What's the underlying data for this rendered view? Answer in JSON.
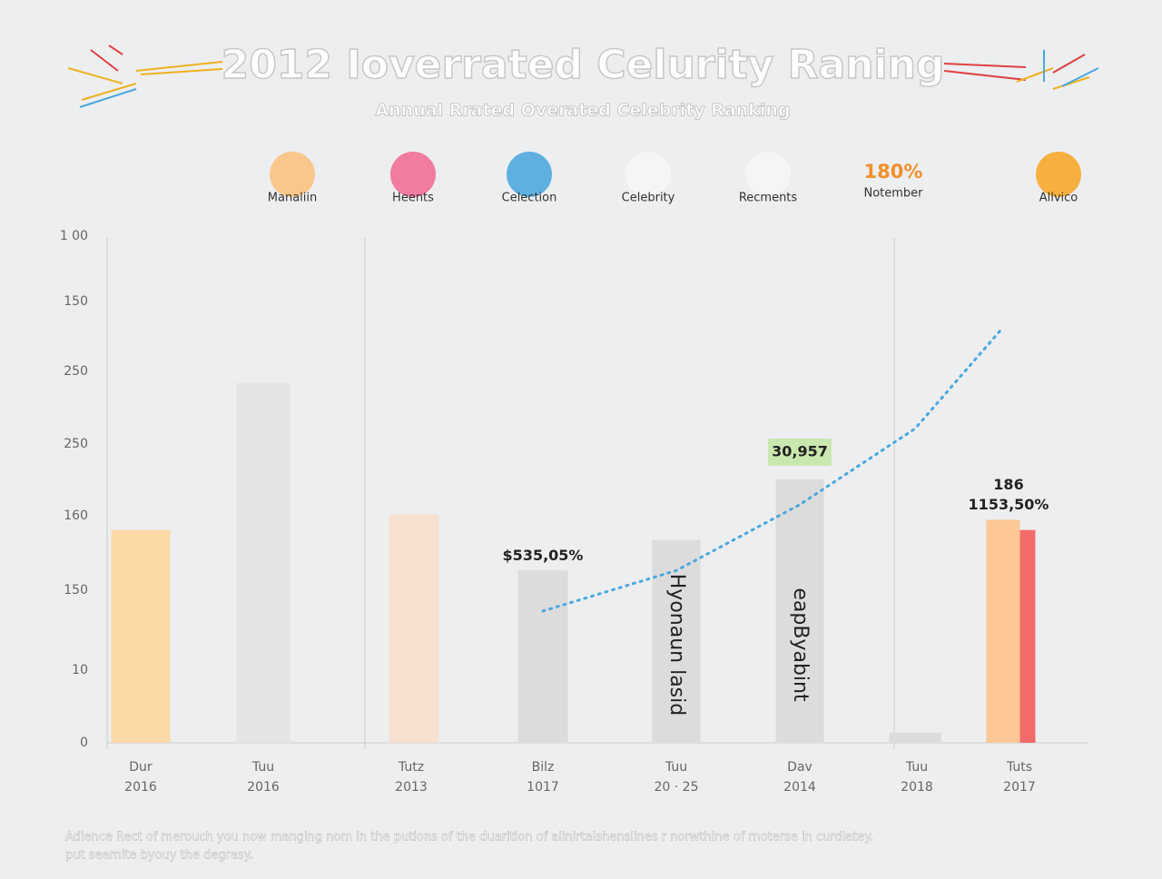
{
  "chart_data": {
    "type": "bar",
    "title": "2012 Ioverrated Celurity Raning",
    "subtitle": "Annual Rrated Overated Celebrity Ranking",
    "legend": [
      "Manaliin",
      "Heents",
      "Celection",
      "Celebrity",
      "Recments",
      "Allvico"
    ],
    "highlight": {
      "value_text": "180%",
      "label": "Notember"
    },
    "y_axis_labels": [
      "1 00",
      "150",
      "250",
      "250",
      "160",
      "150",
      "10",
      "0"
    ],
    "ylim": [
      0,
      100
    ],
    "categories": [
      [
        "Dur",
        "2016"
      ],
      [
        "Tuu",
        "2016"
      ],
      [
        "Tutz",
        "2013"
      ],
      [
        "Bilz",
        "1017"
      ],
      [
        "Tuu",
        "20 · 25"
      ],
      [
        "Dav",
        "2014"
      ],
      [
        "Tuu",
        "2018"
      ],
      [
        "Tuts",
        "2017"
      ]
    ],
    "series": [
      {
        "colors": [
          "#fdd9a8",
          "#e4e4e4",
          "#f7e0d0",
          "#dcdcdc",
          "#dcdcdc",
          "#dcdcdc",
          "#dcdcdc",
          "#fdc896"
        ],
        "values": [
          42,
          71,
          45,
          34,
          40,
          52,
          2,
          44
        ]
      },
      {
        "color": "#f26b6b",
        "values": [
          null,
          null,
          null,
          null,
          null,
          null,
          null,
          42
        ]
      },
      {
        "type": "line",
        "color": "#4aa8de",
        "values": [
          null,
          null,
          null,
          26,
          34,
          47,
          62,
          82
        ]
      }
    ],
    "annotations": [
      {
        "text": "$535,05%",
        "category": 3
      },
      {
        "text": "30,957",
        "category": 5
      },
      {
        "text": "186",
        "category": 7
      },
      {
        "text": "1153,50%",
        "category": 7
      }
    ],
    "bar_texts": [
      {
        "text": "Hyonaun lasid",
        "category": 4
      },
      {
        "text": "eapByabint",
        "category": 5
      }
    ],
    "footer": [
      "Adience Rect of merouch you now manging nom in the putions of the duarition of alinirtalshenslines r norwthine of rnoterse in curdlatey.",
      "put seernite byouy the degrasy."
    ]
  }
}
